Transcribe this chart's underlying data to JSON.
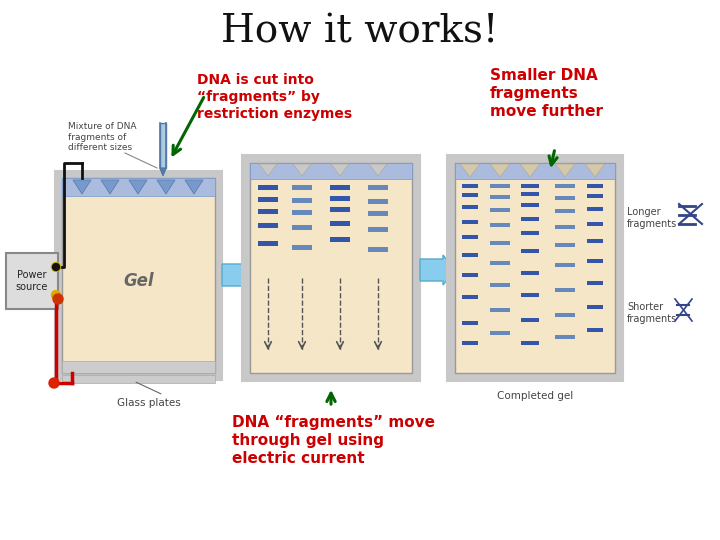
{
  "title": "How it works!",
  "title_fontsize": 28,
  "title_font": "serif",
  "bg_color": "#ffffff",
  "annotation1_line1": "DNA is cut into",
  "annotation1_line2": "“fragments” by",
  "annotation1_line3": "restriction enzymes",
  "annotation2_line1": "Smaller DNA",
  "annotation2_line2": "fragments",
  "annotation2_line3": "move further",
  "annotation3_line1": "DNA “fragments” move",
  "annotation3_line2": "through gel using",
  "annotation3_line3": "electric current",
  "ann1_color": "#cc0000",
  "ann2_color": "#cc0000",
  "ann3_color": "#cc0000",
  "gel_color": "#f5e6c8",
  "gel_border": "#999999",
  "gel_outer": "#c8c8c8",
  "arrow_green": "#006600",
  "big_arrow_color": "#88ccee",
  "big_arrow_edge": "#55aacc",
  "band_dark": "#3355aa",
  "band_light": "#6688bb",
  "wire_red": "#cc0000",
  "wire_black": "#111111",
  "ps_face": "#dddddd",
  "ps_edge": "#888888",
  "label_color": "#444444",
  "top_bar_face": "#aabbdd",
  "top_bar_edge": "#7799cc",
  "tab_face": "#d4c8a8",
  "tab_edge": "#aaaaaa"
}
